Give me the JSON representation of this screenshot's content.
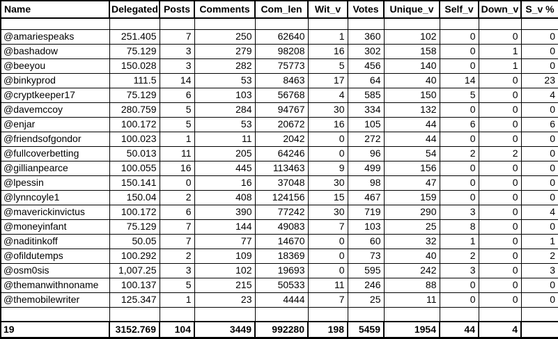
{
  "colors": {
    "background": "#ffffff",
    "grid_border": "#000000",
    "text": "#000000"
  },
  "table": {
    "columns": [
      {
        "key": "name",
        "label": "Name",
        "width": 156,
        "type": "text"
      },
      {
        "key": "delegated",
        "label": "Delegated",
        "width": 72,
        "type": "num"
      },
      {
        "key": "posts",
        "label": "Posts",
        "width": 50,
        "type": "num"
      },
      {
        "key": "comments",
        "label": "Comments",
        "width": 87,
        "type": "num"
      },
      {
        "key": "com_len",
        "label": "Com_len",
        "width": 76,
        "type": "num"
      },
      {
        "key": "wit_v",
        "label": "Wit_v",
        "width": 57,
        "type": "num"
      },
      {
        "key": "votes",
        "label": "Votes",
        "width": 52,
        "type": "num"
      },
      {
        "key": "unique_v",
        "label": "Unique_v",
        "width": 80,
        "type": "num"
      },
      {
        "key": "self_v",
        "label": "Self_v",
        "width": 56,
        "type": "num"
      },
      {
        "key": "down_v",
        "label": "Down_v",
        "width": 61,
        "type": "num"
      },
      {
        "key": "sv_pct",
        "label": "S_v %",
        "width": 53,
        "type": "num"
      }
    ],
    "rows": [
      [
        "@amariespeaks",
        "251.405",
        "7",
        "250",
        "62640",
        "1",
        "360",
        "102",
        "0",
        "0",
        "0"
      ],
      [
        "@bashadow",
        "75.129",
        "3",
        "279",
        "98208",
        "16",
        "302",
        "158",
        "0",
        "1",
        "0"
      ],
      [
        "@beeyou",
        "150.028",
        "3",
        "282",
        "75773",
        "5",
        "456",
        "140",
        "0",
        "1",
        "0"
      ],
      [
        "@binkyprod",
        "111.5",
        "14",
        "53",
        "8463",
        "17",
        "64",
        "40",
        "14",
        "0",
        "23"
      ],
      [
        "@cryptkeeper17",
        "75.129",
        "6",
        "103",
        "56768",
        "4",
        "585",
        "150",
        "5",
        "0",
        "4"
      ],
      [
        "@davemccoy",
        "280.759",
        "5",
        "284",
        "94767",
        "30",
        "334",
        "132",
        "0",
        "0",
        "0"
      ],
      [
        "@enjar",
        "100.172",
        "5",
        "53",
        "20672",
        "16",
        "105",
        "44",
        "6",
        "0",
        "6"
      ],
      [
        "@friendsofgondor",
        "100.023",
        "1",
        "11",
        "2042",
        "0",
        "272",
        "44",
        "0",
        "0",
        "0"
      ],
      [
        "@fullcoverbetting",
        "50.013",
        "11",
        "205",
        "64246",
        "0",
        "96",
        "54",
        "2",
        "2",
        "0"
      ],
      [
        "@gillianpearce",
        "100.055",
        "16",
        "445",
        "113463",
        "9",
        "499",
        "156",
        "0",
        "0",
        "0"
      ],
      [
        "@lpessin",
        "150.141",
        "0",
        "16",
        "37048",
        "30",
        "98",
        "47",
        "0",
        "0",
        "0"
      ],
      [
        "@lynncoyle1",
        "150.04",
        "2",
        "408",
        "124156",
        "15",
        "467",
        "159",
        "0",
        "0",
        "0"
      ],
      [
        "@maverickinvictus",
        "100.172",
        "6",
        "390",
        "77242",
        "30",
        "719",
        "290",
        "3",
        "0",
        "4"
      ],
      [
        "@moneyinfant",
        "75.129",
        "7",
        "144",
        "49083",
        "7",
        "103",
        "25",
        "8",
        "0",
        "0"
      ],
      [
        "@naditinkoff",
        "50.05",
        "7",
        "77",
        "14670",
        "0",
        "60",
        "32",
        "1",
        "0",
        "1"
      ],
      [
        "@ofildutemps",
        "100.292",
        "2",
        "109",
        "18369",
        "0",
        "73",
        "40",
        "2",
        "0",
        "2"
      ],
      [
        "@osm0sis",
        "1,007.25",
        "3",
        "102",
        "19693",
        "0",
        "595",
        "242",
        "3",
        "0",
        "3"
      ],
      [
        "@themanwithnoname",
        "100.137",
        "5",
        "215",
        "50533",
        "11",
        "246",
        "88",
        "0",
        "0",
        "0"
      ],
      [
        "@themobilewriter",
        "125.347",
        "1",
        "23",
        "4444",
        "7",
        "25",
        "11",
        "0",
        "0",
        "0"
      ]
    ],
    "totals": [
      "19",
      "3152.769",
      "104",
      "3449",
      "992280",
      "198",
      "5459",
      "1954",
      "44",
      "4",
      ""
    ]
  }
}
